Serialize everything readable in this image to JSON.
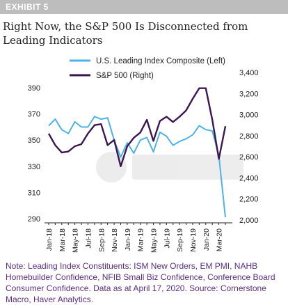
{
  "exhibit": "EXHIBIT 5",
  "title": "Right Now, the S&P 500 Is Disconnected from Leading Indicators",
  "note": "Note: Leading Index Constituents: ISM New Orders, EM PMI, NAHB Homebuilder Confidence, NFIB Small Biz Confidence, Conference Board Consumer Confidence. Data as at April 17, 2020. Source: Cornerstone Macro, Haver Analytics.",
  "chart_data": {
    "type": "line",
    "x": [
      "Jan-18",
      "Feb-18",
      "Mar-18",
      "Apr-18",
      "May-18",
      "Jun-18",
      "Jul-18",
      "Aug-18",
      "Sep-18",
      "Oct-18",
      "Nov-18",
      "Dec-18",
      "Jan-19",
      "Feb-19",
      "Mar-19",
      "Apr-19",
      "May-19",
      "Jun-19",
      "Jul-19",
      "Aug-19",
      "Sep-19",
      "Oct-19",
      "Nov-19",
      "Dec-19",
      "Jan-20",
      "Feb-20",
      "Mar-20",
      "Apr-20"
    ],
    "xtick_labels": [
      "Jan-18",
      "Mar-18",
      "May-18",
      "Jul-18",
      "Sep-18",
      "Nov-18",
      "Jan-19",
      "Mar-19",
      "May-19",
      "Jul-19",
      "Sep-19",
      "Nov-19",
      "Jan-20",
      "Mar-20"
    ],
    "series": [
      {
        "name": "U.S. Leading Index Composite (Left)",
        "axis": "left",
        "color": "#4db3e6",
        "values": [
          361,
          366,
          358,
          355,
          364,
          360,
          360,
          368,
          366,
          367,
          350,
          337,
          348,
          340,
          350,
          352,
          341,
          356,
          353,
          346,
          349,
          351,
          354,
          361,
          358,
          357,
          338,
          291
        ]
      },
      {
        "name": "S&P 500 (Right)",
        "axis": "right",
        "color": "#3b1650",
        "values": [
          2820,
          2710,
          2640,
          2650,
          2700,
          2720,
          2820,
          2900,
          2910,
          2710,
          2760,
          2510,
          2700,
          2780,
          2830,
          2950,
          2750,
          2940,
          2980,
          2930,
          2980,
          3040,
          3150,
          3250,
          3250,
          2950,
          2580,
          2890
        ]
      }
    ],
    "left_axis": {
      "ticks": [
        290,
        310,
        330,
        350,
        370,
        390
      ],
      "tick_labels": [
        "290",
        "310",
        "330",
        "350",
        "370",
        "390"
      ],
      "ylim": [
        290,
        400
      ]
    },
    "right_axis": {
      "ticks": [
        2000,
        2200,
        2400,
        2600,
        2800,
        3000,
        3200,
        3400
      ],
      "tick_labels": [
        "2,000",
        "2,200",
        "2,400",
        "2,600",
        "2,800",
        "3,000",
        "3,200",
        "3,400"
      ],
      "ylim": [
        2000,
        3400
      ]
    },
    "grid": false,
    "legend": {
      "position": "top",
      "entries": [
        "U.S. Leading Index Composite (Left)",
        "S&P 500 (Right)"
      ]
    }
  }
}
